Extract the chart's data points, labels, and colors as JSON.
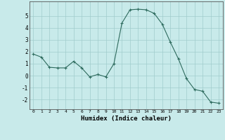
{
  "x": [
    0,
    1,
    2,
    3,
    4,
    5,
    6,
    7,
    8,
    9,
    10,
    11,
    12,
    13,
    14,
    15,
    16,
    17,
    18,
    19,
    20,
    21,
    22,
    23
  ],
  "y": [
    1.8,
    1.55,
    0.7,
    0.65,
    0.65,
    1.2,
    0.65,
    -0.1,
    0.1,
    -0.1,
    1.0,
    4.4,
    5.5,
    5.55,
    5.5,
    5.2,
    4.3,
    2.8,
    1.4,
    -0.25,
    -1.15,
    -1.3,
    -2.2,
    -2.3
  ],
  "xlabel": "Humidex (Indice chaleur)",
  "ylim": [
    -2.8,
    6.2
  ],
  "xlim": [
    -0.5,
    23.5
  ],
  "yticks": [
    -2,
    -1,
    0,
    1,
    2,
    3,
    4,
    5
  ],
  "xticks": [
    0,
    1,
    2,
    3,
    4,
    5,
    6,
    7,
    8,
    9,
    10,
    11,
    12,
    13,
    14,
    15,
    16,
    17,
    18,
    19,
    20,
    21,
    22,
    23
  ],
  "line_color": "#2e6b5e",
  "marker": "+",
  "bg_color": "#c8eaea",
  "grid_color": "#a0cccc",
  "axis_color": "#555555"
}
